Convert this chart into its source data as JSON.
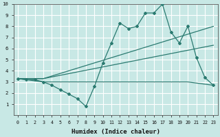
{
  "xlabel": "Humidex (Indice chaleur)",
  "xlim": [
    -0.5,
    23.5
  ],
  "ylim": [
    0,
    10
  ],
  "xticks": [
    0,
    1,
    2,
    3,
    4,
    5,
    6,
    7,
    8,
    9,
    10,
    11,
    12,
    13,
    14,
    15,
    16,
    17,
    18,
    19,
    20,
    21,
    22,
    23
  ],
  "yticks": [
    1,
    2,
    3,
    4,
    5,
    6,
    7,
    8,
    9,
    10
  ],
  "bg_color": "#c8e8e5",
  "grid_color": "#b0d8d5",
  "line_color": "#2a7a70",
  "line1_x": [
    0,
    1,
    2,
    3,
    4,
    5,
    6,
    7,
    8,
    9,
    10,
    11,
    12,
    13,
    14,
    15,
    16,
    17,
    18,
    19,
    20,
    21,
    22,
    23
  ],
  "line1_y": [
    3.3,
    3.2,
    3.2,
    3.0,
    2.7,
    2.3,
    1.9,
    1.5,
    0.8,
    2.6,
    4.7,
    6.5,
    8.3,
    7.8,
    8.0,
    9.2,
    9.2,
    10.0,
    7.5,
    6.5,
    8.0,
    5.2,
    3.4,
    2.7
  ],
  "line2_x": [
    0,
    3,
    23
  ],
  "line2_y": [
    3.3,
    3.3,
    8.0
  ],
  "line3_x": [
    0,
    3,
    23
  ],
  "line3_y": [
    3.3,
    3.3,
    6.3
  ],
  "line4_x": [
    0,
    3,
    9,
    20,
    23
  ],
  "line4_y": [
    3.3,
    3.0,
    3.0,
    3.0,
    2.7
  ]
}
